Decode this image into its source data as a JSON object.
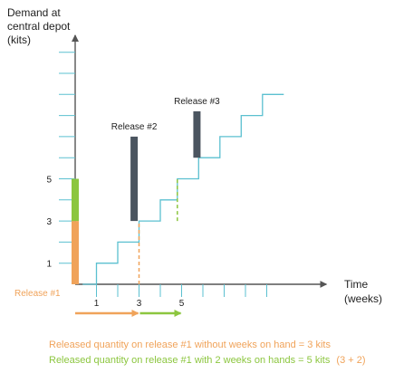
{
  "chart_data": {
    "type": "line",
    "ylabel_lines": [
      "Demand at",
      "central depot",
      "(kits)"
    ],
    "xlabel_lines": [
      "Time",
      "(weeks)"
    ],
    "x_tick_labels": [
      {
        "x": 1,
        "label": "1"
      },
      {
        "x": 3,
        "label": "3"
      },
      {
        "x": 5,
        "label": "5"
      }
    ],
    "y_tick_labels": [
      {
        "y": 1,
        "label": "1"
      },
      {
        "y": 3,
        "label": "3"
      },
      {
        "y": 5,
        "label": "5"
      }
    ],
    "x_ticks": [
      1,
      2,
      3,
      4,
      5,
      6,
      7,
      8,
      9
    ],
    "y_ticks": [
      1,
      2,
      3,
      4,
      5,
      6,
      7,
      8,
      9,
      10,
      11
    ],
    "xlim": [
      0,
      11.8
    ],
    "ylim": [
      0,
      11.8
    ],
    "demand_steps": [
      {
        "x": 0.35,
        "y": 0
      },
      {
        "x": 1,
        "y": 0
      },
      {
        "x": 1,
        "y": 1
      },
      {
        "x": 2,
        "y": 1
      },
      {
        "x": 2,
        "y": 2
      },
      {
        "x": 3,
        "y": 2
      },
      {
        "x": 3,
        "y": 3
      },
      {
        "x": 4,
        "y": 3
      },
      {
        "x": 4,
        "y": 4
      },
      {
        "x": 4.8,
        "y": 4
      },
      {
        "x": 4.8,
        "y": 5
      },
      {
        "x": 5.8,
        "y": 5
      },
      {
        "x": 5.8,
        "y": 6
      },
      {
        "x": 6.8,
        "y": 6
      },
      {
        "x": 6.8,
        "y": 7
      },
      {
        "x": 7.8,
        "y": 7
      },
      {
        "x": 7.8,
        "y": 8
      },
      {
        "x": 8.8,
        "y": 8
      },
      {
        "x": 8.8,
        "y": 9
      },
      {
        "x": 9.8,
        "y": 9
      }
    ],
    "release_1_bar": {
      "x": 0,
      "orange_top": 3,
      "green_top": 5
    },
    "release_bars": [
      {
        "name": "Release #2",
        "x": 2.6,
        "bottom": 3,
        "top": 7
      },
      {
        "name": "Release #3",
        "x": 5.55,
        "bottom": 6,
        "top": 8.2
      }
    ],
    "dashed_markers": [
      {
        "x": 3,
        "from": 0,
        "to": 3,
        "color": "#f0a35a"
      },
      {
        "x": 4.8,
        "from": 3,
        "to": 5,
        "color": "#8cc63f"
      }
    ],
    "release_1_label": "Release #1",
    "arrows": [
      {
        "from": 0,
        "to": 3,
        "color": "#f0a35a"
      },
      {
        "from": 3,
        "to": 5,
        "color": "#8cc63f"
      }
    ],
    "colors": {
      "axis": "#555555",
      "demand": "#5bc0d0",
      "orange": "#f0a35a",
      "green": "#8cc63f",
      "release_bar": "#4b5560"
    }
  },
  "captions": {
    "line1": "Released quantity on release #1 without weeks on hand = 3 kits",
    "line2_main": "Released quantity on release #1 with 2 weeks on hands = 5 kits",
    "line2_paren": "(3 + 2)"
  }
}
